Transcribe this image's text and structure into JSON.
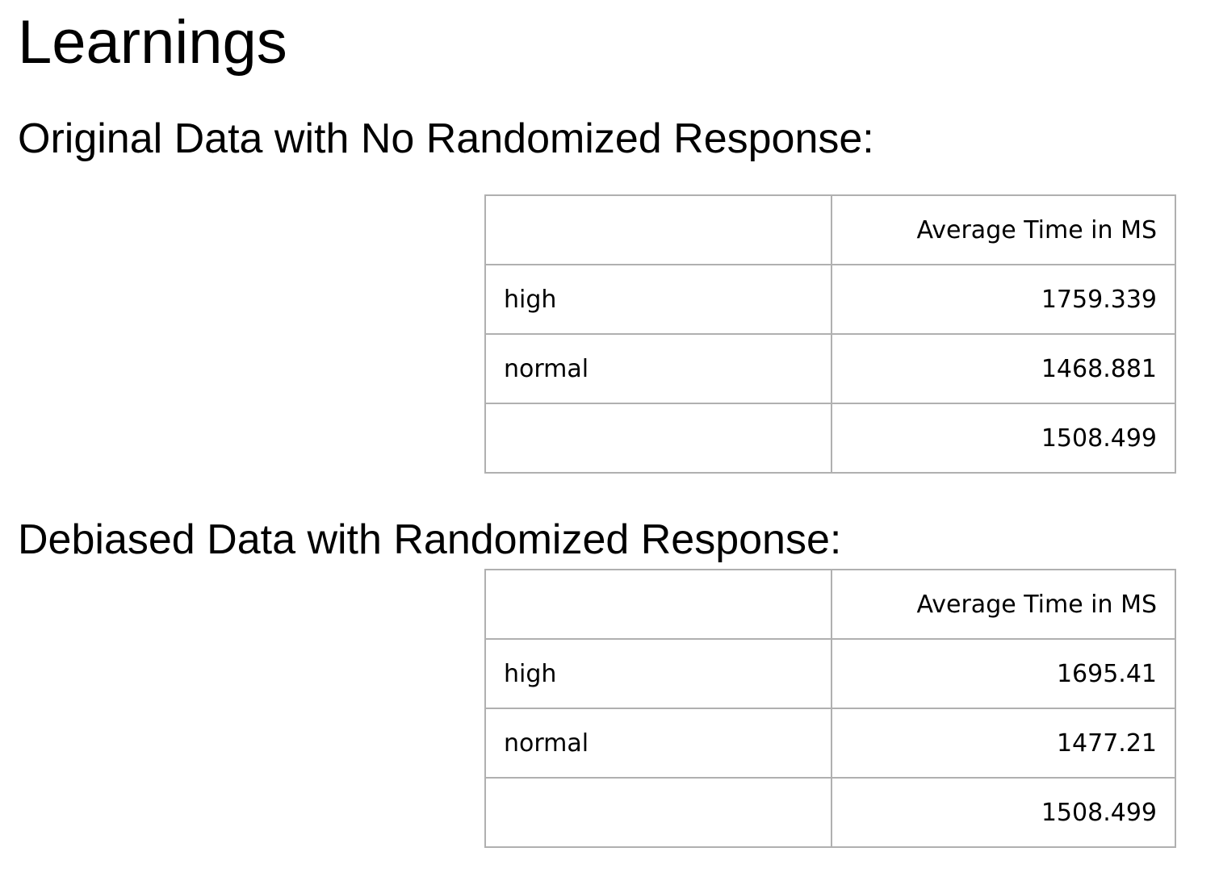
{
  "title": "Learnings",
  "sections": [
    {
      "heading": "Original Data with No Randomized Response:",
      "header": [
        "",
        "Average Time in MS"
      ],
      "rows": [
        [
          "high",
          "1759.339"
        ],
        [
          "normal",
          "1468.881"
        ],
        [
          "",
          "1508.499"
        ]
      ]
    },
    {
      "heading": "Debiased Data with Randomized Response:",
      "header": [
        "",
        "Average Time in MS"
      ],
      "rows": [
        [
          "high",
          "1695.41"
        ],
        [
          "normal",
          "1477.21"
        ],
        [
          "",
          "1508.499"
        ]
      ]
    }
  ]
}
